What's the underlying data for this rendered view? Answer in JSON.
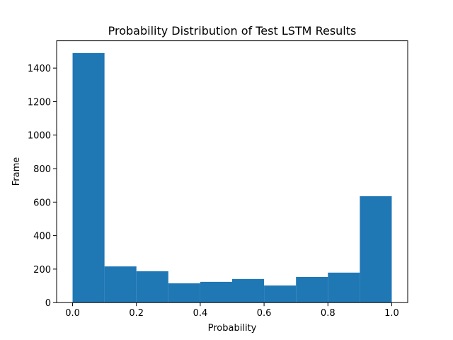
{
  "chart_data": {
    "type": "histogram",
    "title": "Probability Distribution of Test LSTM Results",
    "xlabel": "Probability",
    "ylabel": "Frame",
    "bins": [
      0,
      0.1,
      0.2,
      0.3,
      0.4,
      0.5,
      0.6,
      0.7,
      0.8,
      0.9,
      1
    ],
    "values": [
      1490,
      216,
      187,
      115,
      124,
      141,
      102,
      153,
      179,
      635
    ],
    "color": "#1f77b4",
    "xlim": [
      -0.05,
      1.05
    ],
    "xticks": [
      {
        "value": 0,
        "label": "0.0"
      },
      {
        "value": 0.2,
        "label": "0.2"
      },
      {
        "value": 0.4,
        "label": "0.4"
      },
      {
        "value": 0.6,
        "label": "0.6"
      },
      {
        "value": 0.8,
        "label": "0.8"
      },
      {
        "value": 1,
        "label": "1.0"
      }
    ],
    "ylim": [
      0,
      1563
    ],
    "yticks": [
      0,
      200,
      400,
      600,
      800,
      1000,
      1200,
      1400
    ]
  }
}
